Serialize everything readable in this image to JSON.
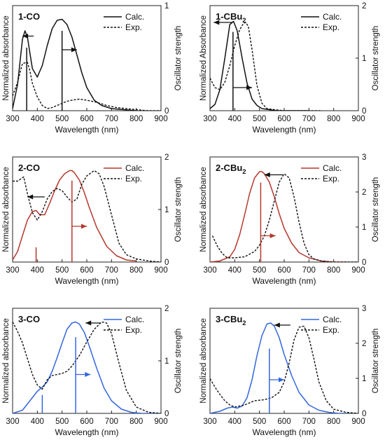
{
  "panels": [
    {
      "label": "1-CO",
      "label_main": "1-CO",
      "label_sub": "",
      "ylabel": "Normalized absorbance",
      "y2label": "Oscillator strength",
      "xlabel": "Wavelength (nm)"
    },
    {
      "label": "1-CBu2",
      "label_main": "1-CBu",
      "label_sub": "2",
      "ylabel": "Normalized Absorbance",
      "y2label": "Oscillator strength",
      "xlabel": "Wavelength (nm)"
    },
    {
      "label": "2-CO",
      "label_main": "2-CO",
      "label_sub": "",
      "ylabel": "Normalized absorbance",
      "y2label": "Oscillator strength",
      "xlabel": "Wavelength (nm)"
    },
    {
      "label": "2-CBu2",
      "label_main": "2-CBu",
      "label_sub": "2",
      "ylabel": "Normalized absorbance",
      "y2label": "Oscillator strength",
      "xlabel": "Wavelength (nm)"
    },
    {
      "label": "3-CO",
      "label_main": "3-CO",
      "label_sub": "",
      "ylabel": "Normalized absorbance",
      "y2label": "Oscillator strength",
      "xlabel": "Wavelength (nm)"
    },
    {
      "label": "3-CBu2",
      "label_main": "3-CBu",
      "label_sub": "2",
      "ylabel": "Normalized absorbance",
      "y2label": "Oscillator strength",
      "xlabel": "Wavelength (nm)"
    }
  ],
  "chart_data": [
    {
      "type": "line",
      "title": "1-CO",
      "xlabel": "Wavelength (nm)",
      "ylabel": "Normalized absorbance",
      "y2label": "Oscillator strength",
      "xlim": [
        300,
        900
      ],
      "xticks": [
        300,
        400,
        500,
        600,
        700,
        800,
        900
      ],
      "y2lim": [
        0,
        1
      ],
      "y2ticks": [
        0,
        1
      ],
      "legend": "top-right",
      "color": "#111111",
      "series": [
        {
          "name": "Calc.",
          "style": "solid",
          "x": [
            300,
            320,
            340,
            350,
            360,
            370,
            380,
            400,
            420,
            440,
            460,
            480,
            500,
            520,
            540,
            560,
            580,
            600,
            630,
            660,
            700,
            750,
            800
          ],
          "y": [
            0.02,
            0.25,
            0.68,
            0.76,
            0.7,
            0.55,
            0.4,
            0.32,
            0.43,
            0.62,
            0.78,
            0.86,
            0.87,
            0.82,
            0.7,
            0.53,
            0.36,
            0.22,
            0.1,
            0.05,
            0.02,
            0.01,
            0.0
          ]
        },
        {
          "name": "Exp.",
          "style": "dashed",
          "x": [
            300,
            320,
            340,
            360,
            370,
            380,
            400,
            420,
            440,
            460,
            480,
            500,
            520,
            540,
            570,
            600,
            640,
            680,
            720,
            760,
            800,
            850,
            900
          ],
          "y": [
            0.14,
            0.27,
            0.45,
            0.46,
            0.38,
            0.26,
            0.13,
            0.05,
            0.02,
            0.03,
            0.05,
            0.07,
            0.09,
            0.1,
            0.11,
            0.1,
            0.08,
            0.05,
            0.03,
            0.02,
            0.01,
            0.0,
            0.0
          ]
        }
      ],
      "sticks": [
        {
          "x": 357,
          "f": 0.6
        },
        {
          "x": 500,
          "f": 0.76
        }
      ],
      "arrows": [
        {
          "direction": "left",
          "x": [
            340,
            385
          ],
          "y": 0.71
        },
        {
          "direction": "right",
          "x": [
            500,
            560
          ],
          "y": 0.58
        }
      ]
    },
    {
      "type": "line",
      "title": "1-CBu2",
      "xlabel": "Wavelength (nm)",
      "ylabel": "Normalized Absorbance",
      "y2label": "Oscillator strength",
      "xlim": [
        300,
        900
      ],
      "xticks": [
        300,
        400,
        500,
        600,
        700,
        800,
        900
      ],
      "y2lim": [
        0,
        2
      ],
      "y2ticks": [
        0,
        1,
        2
      ],
      "legend": "top-right",
      "color": "#111111",
      "series": [
        {
          "name": "Calc.",
          "style": "solid",
          "x": [
            300,
            320,
            340,
            360,
            380,
            395,
            410,
            430,
            450,
            470,
            490,
            510,
            540,
            570,
            600,
            650,
            700
          ],
          "y": [
            0.02,
            0.06,
            0.2,
            0.5,
            0.82,
            0.85,
            0.76,
            0.5,
            0.26,
            0.11,
            0.05,
            0.02,
            0.01,
            0.0,
            0.0,
            0.0,
            0.0
          ]
        },
        {
          "name": "Exp.",
          "style": "dashed",
          "x": [
            300,
            320,
            340,
            360,
            380,
            400,
            420,
            435,
            445,
            455,
            470,
            490,
            510,
            530,
            560,
            600,
            650,
            700,
            750
          ],
          "y": [
            0.31,
            0.22,
            0.2,
            0.27,
            0.43,
            0.62,
            0.77,
            0.83,
            0.84,
            0.8,
            0.58,
            0.24,
            0.07,
            0.02,
            0.01,
            0.0,
            0.0,
            0.0,
            0.0
          ]
        }
      ],
      "sticks": [
        {
          "x": 393,
          "f": 1.5
        }
      ],
      "arrows": [
        {
          "direction": "left",
          "x": [
            315,
            390
          ],
          "y": 0.84
        },
        {
          "direction": "right",
          "x": [
            395,
            470
          ],
          "y": 0.22
        }
      ]
    },
    {
      "type": "line",
      "title": "2-CO",
      "xlabel": "Wavelength (nm)",
      "ylabel": "Normalized absorbance",
      "y2label": "Oscillator strength",
      "xlim": [
        300,
        900
      ],
      "xticks": [
        300,
        400,
        500,
        600,
        700,
        800,
        900
      ],
      "y2lim": [
        0,
        2
      ],
      "y2ticks": [
        0,
        1,
        2
      ],
      "legend": "top-right",
      "color": "#b5382b",
      "exp_color": "#111111",
      "series": [
        {
          "name": "Calc.",
          "style": "solid",
          "x": [
            300,
            320,
            340,
            360,
            380,
            395,
            410,
            430,
            450,
            470,
            490,
            510,
            530,
            540,
            550,
            570,
            590,
            610,
            640,
            680,
            720,
            760,
            800
          ],
          "y": [
            0.02,
            0.1,
            0.25,
            0.4,
            0.48,
            0.49,
            0.45,
            0.45,
            0.56,
            0.68,
            0.78,
            0.84,
            0.87,
            0.87,
            0.85,
            0.78,
            0.66,
            0.52,
            0.33,
            0.15,
            0.06,
            0.02,
            0.01
          ]
        },
        {
          "name": "Exp.",
          "style": "dashed",
          "x": [
            300,
            320,
            345,
            360,
            380,
            400,
            420,
            440,
            460,
            480,
            500,
            520,
            540,
            560,
            580,
            600,
            630,
            650,
            670,
            700,
            730,
            760,
            800,
            850,
            900
          ],
          "y": [
            0.77,
            0.77,
            0.81,
            0.65,
            0.47,
            0.4,
            0.48,
            0.6,
            0.67,
            0.7,
            0.68,
            0.62,
            0.57,
            0.6,
            0.74,
            0.82,
            0.87,
            0.84,
            0.72,
            0.45,
            0.18,
            0.07,
            0.03,
            0.01,
            0.0
          ]
        }
      ],
      "sticks": [
        {
          "x": 395,
          "f": 0.28
        },
        {
          "x": 540,
          "f": 1.55
        }
      ],
      "arrows": [
        {
          "direction": "left",
          "x": [
            360,
            430
          ],
          "y": 0.62
        },
        {
          "direction": "right",
          "x": [
            540,
            600
          ],
          "y": 0.34
        }
      ]
    },
    {
      "type": "line",
      "title": "2-CBu2",
      "xlabel": "Wavelength (nm)",
      "ylabel": "Normalized absorbance",
      "y2label": "Oscillator strength",
      "xlim": [
        300,
        900
      ],
      "xticks": [
        300,
        400,
        500,
        600,
        700,
        800,
        900
      ],
      "y2lim": [
        0,
        3
      ],
      "y2ticks": [
        0,
        1,
        2,
        3
      ],
      "legend": "top-right",
      "color": "#b5382b",
      "exp_color": "#111111",
      "series": [
        {
          "name": "Calc.",
          "style": "solid",
          "x": [
            300,
            340,
            380,
            400,
            420,
            440,
            460,
            480,
            500,
            510,
            520,
            540,
            560,
            580,
            600,
            630,
            660,
            700,
            750,
            800,
            850
          ],
          "y": [
            0.0,
            0.01,
            0.05,
            0.12,
            0.26,
            0.45,
            0.65,
            0.8,
            0.86,
            0.86,
            0.84,
            0.76,
            0.62,
            0.46,
            0.32,
            0.18,
            0.09,
            0.04,
            0.01,
            0.0,
            0.0
          ]
        },
        {
          "name": "Exp.",
          "style": "dashed",
          "x": [
            310,
            330,
            350,
            370,
            400,
            440,
            480,
            500,
            520,
            540,
            560,
            580,
            600,
            620,
            640,
            660,
            680,
            700,
            720,
            750,
            800,
            850,
            900
          ],
          "y": [
            0.25,
            0.15,
            0.08,
            0.04,
            0.04,
            0.05,
            0.1,
            0.16,
            0.25,
            0.4,
            0.58,
            0.76,
            0.84,
            0.8,
            0.62,
            0.38,
            0.18,
            0.07,
            0.03,
            0.01,
            0.0,
            0.0,
            0.0
          ]
        }
      ],
      "sticks": [
        {
          "x": 505,
          "f": 2.27
        }
      ],
      "arrows": [
        {
          "direction": "left",
          "x": [
            520,
            595
          ],
          "y": 0.83
        },
        {
          "direction": "right",
          "x": [
            505,
            565
          ],
          "y": 0.25
        }
      ]
    },
    {
      "type": "line",
      "title": "3-CO",
      "xlabel": "Wavelength (nm)",
      "ylabel": "Normalized absorbance",
      "y2label": "Oscillator strength",
      "xlim": [
        300,
        900
      ],
      "xticks": [
        300,
        400,
        500,
        600,
        700,
        800,
        900
      ],
      "y2lim": [
        0,
        2
      ],
      "y2ticks": [
        0,
        1,
        2
      ],
      "legend": "top-right",
      "color": "#3366dd",
      "exp_color": "#111111",
      "series": [
        {
          "name": "Calc.",
          "style": "solid",
          "x": [
            300,
            340,
            380,
            400,
            420,
            440,
            460,
            480,
            500,
            520,
            540,
            555,
            570,
            590,
            610,
            640,
            670,
            700,
            740,
            780,
            820,
            860,
            900
          ],
          "y": [
            0.0,
            0.03,
            0.15,
            0.21,
            0.25,
            0.3,
            0.4,
            0.53,
            0.67,
            0.8,
            0.86,
            0.87,
            0.85,
            0.77,
            0.64,
            0.43,
            0.24,
            0.12,
            0.04,
            0.01,
            0.0,
            0.0,
            0.0
          ]
        },
        {
          "name": "Exp.",
          "style": "dashed",
          "x": [
            300,
            320,
            340,
            360,
            380,
            400,
            420,
            440,
            460,
            480,
            500,
            520,
            540,
            570,
            600,
            630,
            660,
            680,
            700,
            730,
            760,
            800,
            850,
            900
          ],
          "y": [
            0.87,
            0.78,
            0.67,
            0.52,
            0.37,
            0.27,
            0.23,
            0.32,
            0.36,
            0.37,
            0.38,
            0.4,
            0.45,
            0.55,
            0.68,
            0.8,
            0.87,
            0.86,
            0.76,
            0.48,
            0.22,
            0.06,
            0.01,
            0.0
          ]
        }
      ],
      "sticks": [
        {
          "x": 420,
          "f": 0.35
        },
        {
          "x": 555,
          "f": 1.45
        }
      ],
      "arrows": [
        {
          "direction": "left",
          "x": [
            595,
            655
          ],
          "y": 0.86
        },
        {
          "direction": "right",
          "x": [
            555,
            615
          ],
          "y": 0.37
        }
      ]
    },
    {
      "type": "line",
      "title": "3-CBu2",
      "xlabel": "Wavelength (nm)",
      "ylabel": "Normalized absorbance",
      "y2label": "Oscillator strength",
      "xlim": [
        300,
        900
      ],
      "xticks": [
        300,
        400,
        500,
        600,
        700,
        800,
        900
      ],
      "y2lim": [
        0,
        3
      ],
      "y2ticks": [
        0,
        1,
        2,
        3
      ],
      "legend": "top-right",
      "color": "#3366dd",
      "exp_color": "#111111",
      "series": [
        {
          "name": "Calc.",
          "style": "solid",
          "x": [
            300,
            340,
            370,
            390,
            410,
            430,
            450,
            470,
            490,
            510,
            530,
            545,
            560,
            580,
            600,
            630,
            660,
            700,
            740,
            780,
            820,
            860
          ],
          "y": [
            0.0,
            0.02,
            0.05,
            0.06,
            0.05,
            0.07,
            0.15,
            0.32,
            0.55,
            0.74,
            0.85,
            0.86,
            0.83,
            0.72,
            0.56,
            0.36,
            0.2,
            0.08,
            0.03,
            0.01,
            0.0,
            0.0
          ]
        },
        {
          "name": "Exp.",
          "style": "dashed",
          "x": [
            300,
            320,
            340,
            360,
            380,
            400,
            440,
            480,
            520,
            550,
            580,
            600,
            620,
            640,
            660,
            680,
            700,
            720,
            740,
            770,
            800,
            850,
            900
          ],
          "y": [
            0.33,
            0.25,
            0.18,
            0.12,
            0.08,
            0.06,
            0.08,
            0.12,
            0.13,
            0.15,
            0.2,
            0.3,
            0.48,
            0.7,
            0.82,
            0.83,
            0.72,
            0.52,
            0.3,
            0.12,
            0.04,
            0.01,
            0.0
          ]
        }
      ],
      "sticks": [
        {
          "x": 540,
          "f": 1.85
        }
      ],
      "arrows": [
        {
          "direction": "left",
          "x": [
            560,
            625
          ],
          "y": 0.84
        },
        {
          "direction": "right",
          "x": [
            540,
            600
          ],
          "y": 0.32
        }
      ]
    }
  ]
}
